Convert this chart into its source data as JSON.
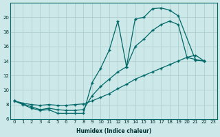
{
  "xlabel": "Humidex (Indice chaleur)",
  "background_color": "#cce8e8",
  "grid_color": "#b0d0d0",
  "line_color": "#006868",
  "line1_x": [
    0,
    1,
    2,
    3,
    4,
    5,
    6,
    7,
    8,
    9,
    10,
    11,
    12,
    13,
    14,
    15,
    16,
    17,
    18,
    19,
    21,
    22
  ],
  "line1_y": [
    8.5,
    8.0,
    7.5,
    7.2,
    7.3,
    6.8,
    6.8,
    6.8,
    6.8,
    11.0,
    13.0,
    15.5,
    19.5,
    13.2,
    19.8,
    20.0,
    21.2,
    21.3,
    21.0,
    20.2,
    14.1,
    14.0
  ],
  "line2_x": [
    0,
    1,
    2,
    3,
    4,
    5,
    6,
    7,
    8,
    9,
    10,
    11,
    12,
    13,
    14,
    15,
    16,
    17,
    18,
    19,
    20,
    21,
    22
  ],
  "line2_y": [
    8.5,
    8.1,
    7.7,
    7.3,
    7.5,
    7.3,
    7.2,
    7.2,
    7.3,
    9.2,
    10.5,
    11.5,
    12.5,
    13.2,
    16.0,
    17.0,
    18.2,
    19.0,
    19.5,
    19.0,
    14.5,
    14.2,
    14.0
  ],
  "line3_x": [
    0,
    1,
    2,
    3,
    4,
    5,
    6,
    7,
    8,
    9,
    10,
    11,
    12,
    13,
    14,
    15,
    16,
    17,
    18,
    19,
    20,
    21,
    22
  ],
  "line3_y": [
    8.5,
    8.2,
    8.0,
    7.9,
    8.0,
    7.9,
    7.9,
    8.0,
    8.1,
    8.5,
    9.0,
    9.5,
    10.2,
    10.8,
    11.5,
    12.0,
    12.5,
    13.0,
    13.5,
    14.0,
    14.5,
    14.8,
    14.0
  ],
  "xlim": [
    -0.5,
    23.5
  ],
  "ylim": [
    6,
    22
  ],
  "yticks": [
    6,
    8,
    10,
    12,
    14,
    16,
    18,
    20
  ],
  "xticks": [
    0,
    1,
    2,
    3,
    4,
    5,
    6,
    7,
    8,
    9,
    10,
    11,
    12,
    13,
    14,
    15,
    16,
    17,
    18,
    19,
    20,
    21,
    22,
    23
  ]
}
